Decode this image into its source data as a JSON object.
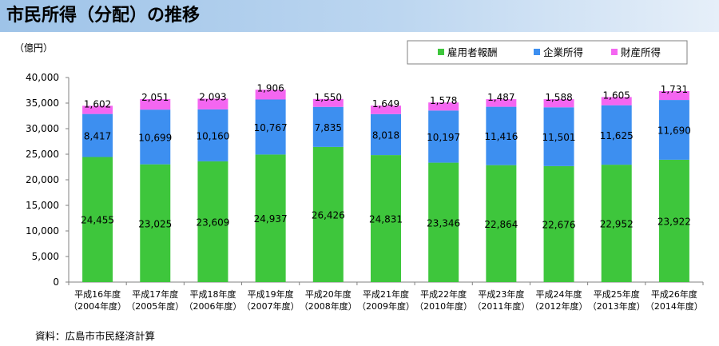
{
  "page": {
    "title": "市民所得（分配）の推移",
    "source": "資料：広島市市民経済計算"
  },
  "chart_data": {
    "type": "bar",
    "stacked": true,
    "ylabel": "（億円）",
    "ylim": [
      0,
      40000
    ],
    "yticks": [
      0,
      5000,
      10000,
      15000,
      20000,
      25000,
      30000,
      35000,
      40000
    ],
    "ytick_labels": [
      "0",
      "5,000",
      "10,000",
      "15,000",
      "20,000",
      "25,000",
      "30,000",
      "35,000",
      "40,000"
    ],
    "categories": [
      [
        "平成16年度",
        "（2004年度）"
      ],
      [
        "平成17年度",
        "（2005年度）"
      ],
      [
        "平成18年度",
        "（2006年度）"
      ],
      [
        "平成19年度",
        "（2007年度）"
      ],
      [
        "平成20年度",
        "（2008年度）"
      ],
      [
        "平成21年度",
        "（2009年度）"
      ],
      [
        "平成22年度",
        "（2010年度）"
      ],
      [
        "平成23年度",
        "（2011年度）"
      ],
      [
        "平成24年度",
        "（2012年度）"
      ],
      [
        "平成25年度",
        "（2013年度）"
      ],
      [
        "平成26年度",
        "（2014年度）"
      ]
    ],
    "legend_position": "top-right",
    "grid": false,
    "series": [
      {
        "name": "雇用者報酬",
        "color": "#3ec63c",
        "values": [
          24455,
          23025,
          23609,
          24937,
          26426,
          24831,
          23346,
          22864,
          22676,
          22952,
          23922
        ],
        "labels": [
          "24,455",
          "23,025",
          "23,609",
          "24,937",
          "26,426",
          "24,831",
          "23,346",
          "22,864",
          "22,676",
          "22,952",
          "23,922"
        ]
      },
      {
        "name": "企業所得",
        "color": "#3d8ff0",
        "values": [
          8417,
          10699,
          10160,
          10767,
          7835,
          8018,
          10197,
          11416,
          11501,
          11625,
          11690
        ],
        "labels": [
          "8,417",
          "10,699",
          "10,160",
          "10,767",
          "7,835",
          "8,018",
          "10,197",
          "11,416",
          "11,501",
          "11,625",
          "11,690"
        ]
      },
      {
        "name": "財産所得",
        "color": "#f466f1",
        "values": [
          1602,
          2051,
          2093,
          1906,
          1550,
          1649,
          1578,
          1487,
          1588,
          1605,
          1731
        ],
        "labels": [
          "1,602",
          "2,051",
          "2,093",
          "1,906",
          "1,550",
          "1,649",
          "1,578",
          "1,487",
          "1,588",
          "1,605",
          "1,731"
        ]
      }
    ]
  }
}
